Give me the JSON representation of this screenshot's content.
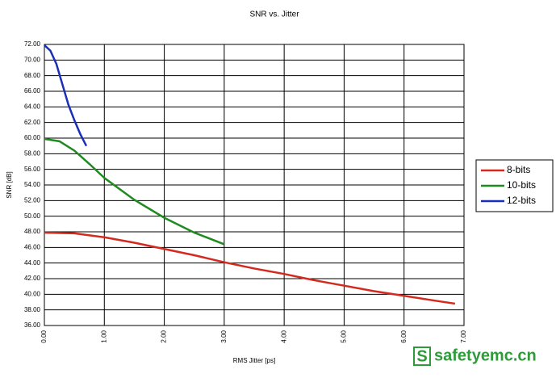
{
  "chart_data": {
    "type": "line",
    "title": "SNR vs. Jitter",
    "x_label": "RMS Jitter [ps]",
    "y_label": "SNR [dB]",
    "xlim": [
      0,
      7
    ],
    "xticks": [
      {
        "value": 0,
        "label": "0.00"
      },
      {
        "value": 1,
        "label": "1.00"
      },
      {
        "value": 2,
        "label": "2.00"
      },
      {
        "value": 3,
        "label": "3.00"
      },
      {
        "value": 4,
        "label": "4.00"
      },
      {
        "value": 5,
        "label": "5.00"
      },
      {
        "value": 6,
        "label": "6.00"
      },
      {
        "value": 7,
        "label": "7.00"
      }
    ],
    "ylim": [
      36,
      72
    ],
    "yticks": [
      {
        "value": 36,
        "label": "36.00"
      },
      {
        "value": 38,
        "label": "38.00"
      },
      {
        "value": 40,
        "label": "40.00"
      },
      {
        "value": 42,
        "label": "42.00"
      },
      {
        "value": 44,
        "label": "44.00"
      },
      {
        "value": 46,
        "label": "46.00"
      },
      {
        "value": 48,
        "label": "48.00"
      },
      {
        "value": 50,
        "label": "50.00"
      },
      {
        "value": 52,
        "label": "52.00"
      },
      {
        "value": 54,
        "label": "54.00"
      },
      {
        "value": 56,
        "label": "56.00"
      },
      {
        "value": 58,
        "label": "58.00"
      },
      {
        "value": 60,
        "label": "60.00"
      },
      {
        "value": 62,
        "label": "62.00"
      },
      {
        "value": 64,
        "label": "64.00"
      },
      {
        "value": 66,
        "label": "66.00"
      },
      {
        "value": 68,
        "label": "68.00"
      },
      {
        "value": 70,
        "label": "70.00"
      },
      {
        "value": 72,
        "label": "72.00"
      }
    ],
    "grid": true,
    "legend": "right",
    "series": [
      {
        "name": "8-bits",
        "color": "#d42a1e",
        "x": [
          0,
          0.5,
          1,
          1.5,
          2,
          2.5,
          3,
          3.5,
          4,
          4.5,
          5,
          5.5,
          6,
          6.5,
          6.85
        ],
        "values": [
          47.9,
          47.8,
          47.3,
          46.6,
          45.8,
          45.0,
          44.1,
          43.3,
          42.6,
          41.8,
          41.1,
          40.4,
          39.8,
          39.2,
          38.8
        ]
      },
      {
        "name": "10-bits",
        "color": "#1f8a1f",
        "x": [
          0,
          0.25,
          0.5,
          0.75,
          1,
          1.5,
          2,
          2.5,
          3
        ],
        "values": [
          59.9,
          59.6,
          58.4,
          56.7,
          54.9,
          52.1,
          49.8,
          47.9,
          46.4
        ]
      },
      {
        "name": "12-bits",
        "color": "#1a2fb8",
        "x": [
          0,
          0.1,
          0.2,
          0.3,
          0.4,
          0.5,
          0.6,
          0.7
        ],
        "values": [
          71.9,
          71.2,
          69.5,
          66.9,
          64.3,
          62.3,
          60.5,
          59.0
        ]
      }
    ]
  },
  "watermark_icon": "S",
  "watermark": "safetyemc.cn"
}
